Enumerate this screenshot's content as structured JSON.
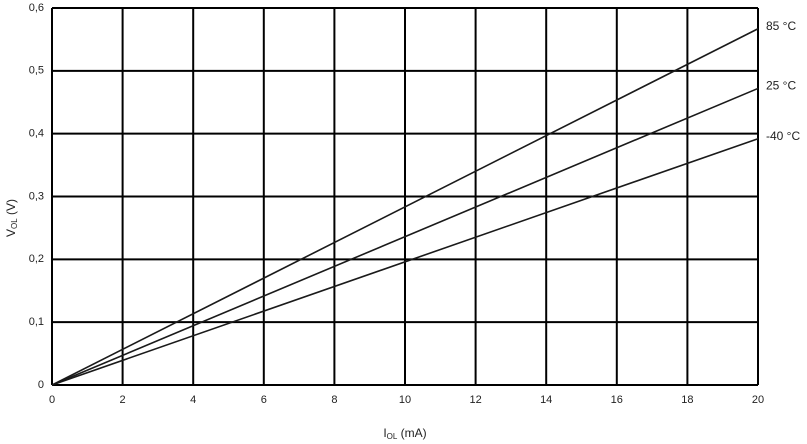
{
  "chart_data": {
    "type": "line",
    "xlabel": [
      "I",
      "OL",
      " (mA)"
    ],
    "ylabel": [
      "V",
      "OL",
      " (V)"
    ],
    "x": [
      0,
      20
    ],
    "series": [
      {
        "name": "85 °C",
        "color": "#1a1a1a",
        "values": [
          0,
          0.567
        ]
      },
      {
        "name": "25 °C",
        "color": "#1a1a1a",
        "values": [
          0,
          0.472
        ]
      },
      {
        "name": "-40 °C",
        "color": "#1a1a1a",
        "values": [
          0,
          0.392
        ]
      }
    ],
    "xlim": [
      0,
      20
    ],
    "xticks": [
      0,
      2,
      4,
      6,
      8,
      10,
      12,
      14,
      16,
      18,
      20
    ],
    "ylim": [
      0,
      0.6
    ],
    "yticks": [
      0,
      {
        "value": 0.1,
        "label": "0,1"
      },
      {
        "value": 0.2,
        "label": "0,2"
      },
      {
        "value": 0.3,
        "label": "0,3"
      },
      {
        "value": 0.4,
        "label": "0,4"
      },
      {
        "value": 0.5,
        "label": "0,5"
      },
      {
        "value": 0.6,
        "label": "0,6"
      }
    ],
    "grid": true,
    "grid_color": "#000000"
  }
}
